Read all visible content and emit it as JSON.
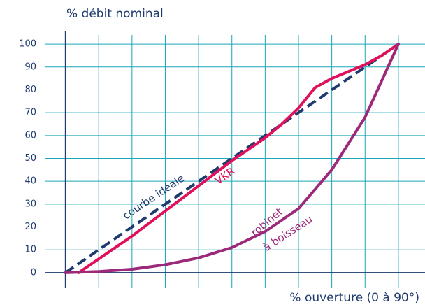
{
  "chart_data": {
    "type": "line",
    "title": "% débit nominal",
    "x_label": "% ouverture (0 à 90°)",
    "xlim": [
      -6,
      108
    ],
    "ylim": [
      -4,
      104
    ],
    "xticks": [
      0,
      10,
      20,
      30,
      40,
      50,
      60,
      70,
      80,
      90,
      100
    ],
    "yticks": [
      0,
      10,
      20,
      30,
      40,
      50,
      60,
      70,
      80,
      90,
      100
    ],
    "grid": true,
    "grid_color": "#1aa6b7",
    "series": [
      {
        "label_lines": [
          "courbe idéale"
        ],
        "color": "#1f3a6e",
        "dashed": true,
        "x": [
          0,
          100
        ],
        "values": [
          0,
          100
        ]
      },
      {
        "label_lines": [
          "VKR"
        ],
        "color": "#e0105a",
        "dashed": false,
        "x": [
          4,
          10,
          20,
          30,
          40,
          50,
          60,
          65,
          70,
          75,
          80,
          85,
          90,
          95,
          100
        ],
        "values": [
          0,
          6,
          16,
          27,
          38,
          49,
          59,
          65,
          72,
          81,
          85,
          88,
          91,
          95,
          100
        ]
      },
      {
        "label_lines": [
          "robinet",
          "à boisseau"
        ],
        "color": "#9c2a7a",
        "dashed": false,
        "x": [
          0,
          10,
          20,
          30,
          40,
          50,
          60,
          70,
          80,
          90,
          100
        ],
        "values": [
          0,
          0.5,
          1.5,
          3.5,
          6.5,
          11,
          18,
          28,
          45,
          68,
          100
        ]
      }
    ]
  }
}
